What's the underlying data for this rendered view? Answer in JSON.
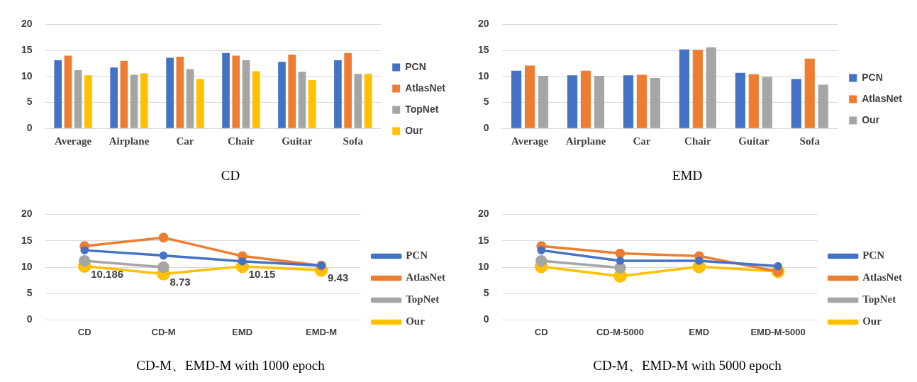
{
  "chart_data": [
    {
      "type": "bar",
      "title": "CD",
      "categories": [
        "Average",
        "Airplane",
        "Car",
        "Chair",
        "Guitar",
        "Sofa"
      ],
      "ylim": [
        0,
        20
      ],
      "yticks": [
        0,
        5,
        10,
        15,
        20
      ],
      "grid": "y",
      "legend": "right",
      "series": [
        {
          "name": "PCN",
          "color": "#4472c4",
          "values": [
            13.1,
            11.7,
            13.6,
            14.5,
            12.8,
            13.1
          ]
        },
        {
          "name": "AtlasNet",
          "color": "#ed7d31",
          "values": [
            14.0,
            13.0,
            13.8,
            14.0,
            14.2,
            14.5
          ]
        },
        {
          "name": "TopNet",
          "color": "#a5a5a5",
          "values": [
            11.2,
            10.3,
            11.4,
            13.1,
            10.9,
            10.5
          ]
        },
        {
          "name": "Our",
          "color": "#ffc000",
          "values": [
            10.2,
            10.6,
            9.5,
            11.0,
            9.3,
            10.5
          ]
        }
      ]
    },
    {
      "type": "bar",
      "title": "EMD",
      "categories": [
        "Average",
        "Airplane",
        "Car",
        "Chair",
        "Guitar",
        "Sofa"
      ],
      "ylim": [
        0,
        20
      ],
      "yticks": [
        0,
        5,
        10,
        15,
        20
      ],
      "grid": "y",
      "legend": "right",
      "series": [
        {
          "name": "PCN",
          "color": "#4472c4",
          "values": [
            11.1,
            10.2,
            10.2,
            15.2,
            10.7,
            9.5
          ]
        },
        {
          "name": "AtlasNet",
          "color": "#ed7d31",
          "values": [
            12.1,
            11.1,
            10.3,
            15.1,
            10.4,
            13.4
          ]
        },
        {
          "name": "Our",
          "color": "#a5a5a5",
          "values": [
            10.1,
            10.1,
            9.7,
            15.6,
            9.9,
            8.4
          ]
        }
      ]
    },
    {
      "type": "line",
      "title": "CD-M、EMD-M with 1000 epoch",
      "categories": [
        "CD",
        "CD-M",
        "EMD",
        "EMD-M"
      ],
      "ylim": [
        0,
        20
      ],
      "yticks": [
        0,
        5,
        10,
        15,
        20
      ],
      "grid": "y",
      "legend": "right",
      "marker": "circle",
      "series": [
        {
          "name": "PCN",
          "color": "#4472c4",
          "values": [
            13.2,
            12.2,
            11.1,
            10.3
          ]
        },
        {
          "name": "AtlasNet",
          "color": "#ed7d31",
          "values": [
            14.0,
            15.6,
            12.1,
            10.3
          ]
        },
        {
          "name": "TopNet",
          "color": "#a5a5a5",
          "values": [
            11.2,
            10.0,
            null,
            null
          ]
        },
        {
          "name": "Our",
          "color": "#ffc000",
          "values": [
            10.186,
            8.73,
            10.15,
            9.43
          ],
          "value_labels": [
            "10.186",
            "8.73",
            "10.15",
            "9.43"
          ]
        }
      ]
    },
    {
      "type": "line",
      "title": "CD-M、EMD-M with 5000 epoch",
      "categories": [
        "CD",
        "CD-M-5000",
        "EMD",
        "EMD-M-5000"
      ],
      "ylim": [
        0,
        20
      ],
      "yticks": [
        0,
        5,
        10,
        15,
        20
      ],
      "grid": "y",
      "legend": "right",
      "marker": "circle",
      "series": [
        {
          "name": "PCN",
          "color": "#4472c4",
          "values": [
            13.2,
            11.2,
            11.2,
            10.2
          ]
        },
        {
          "name": "AtlasNet",
          "color": "#ed7d31",
          "values": [
            14.0,
            12.6,
            12.1,
            9.2
          ]
        },
        {
          "name": "TopNet",
          "color": "#a5a5a5",
          "values": [
            11.2,
            9.9,
            null,
            null
          ]
        },
        {
          "name": "Our",
          "color": "#ffc000",
          "values": [
            10.1,
            8.3,
            10.1,
            9.2
          ]
        }
      ]
    }
  ]
}
